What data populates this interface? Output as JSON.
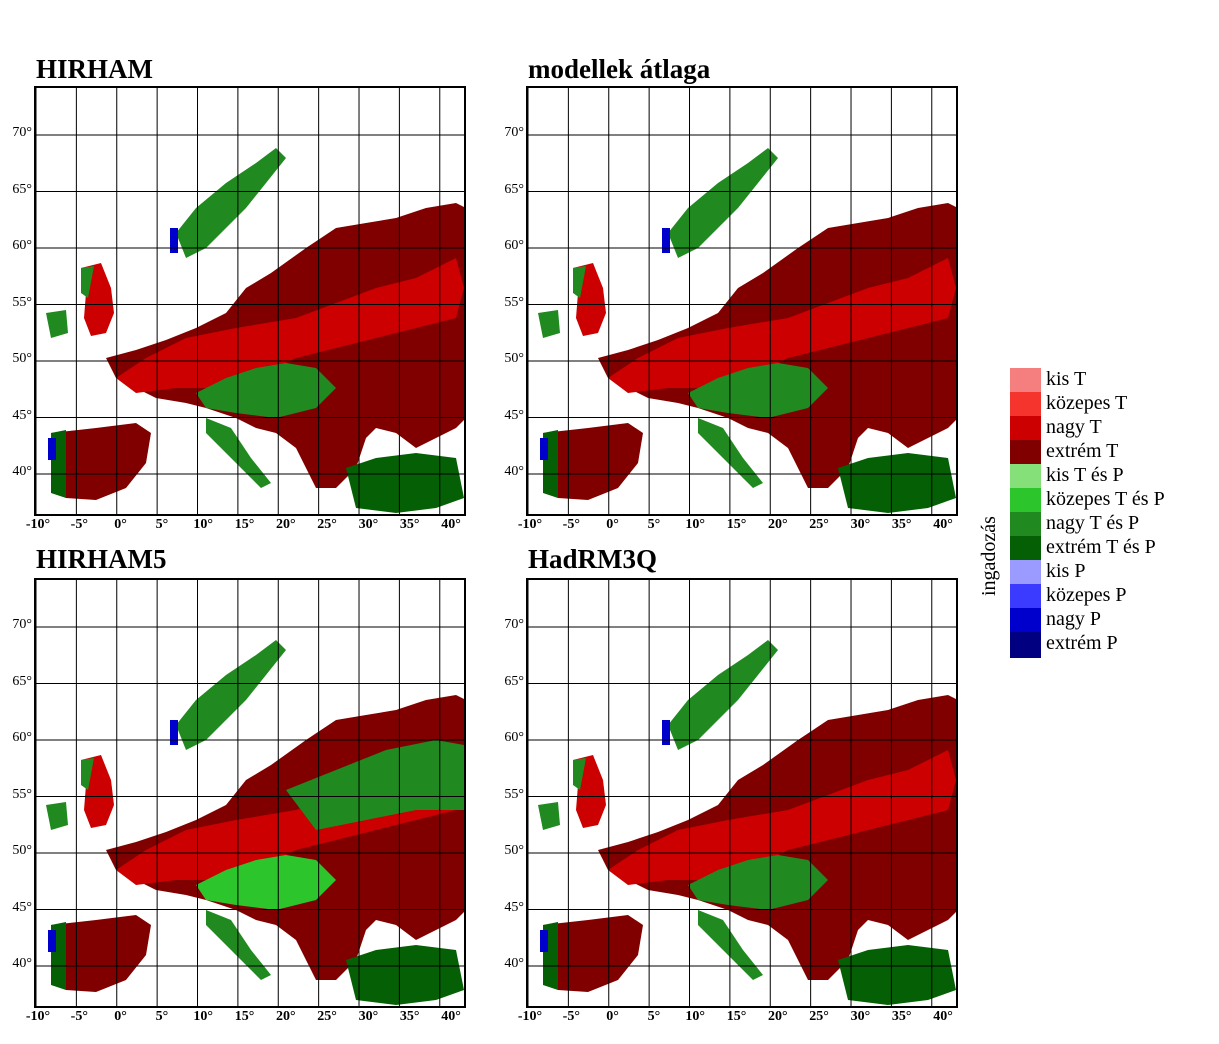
{
  "panels": [
    {
      "title": "HIRHAM"
    },
    {
      "title": "modellek átlaga"
    },
    {
      "title": "HIRHAM5"
    },
    {
      "title": "HadRM3Q"
    }
  ],
  "lat_ticks": [
    "70°",
    "65°",
    "60°",
    "55°",
    "50°",
    "45°",
    "40°"
  ],
  "lon_ticks": [
    "-10°",
    "-5°",
    "0°",
    "5°",
    "10°",
    "15°",
    "20°",
    "25°",
    "30°",
    "35°",
    "40°"
  ],
  "legend": {
    "title": "ingadozás",
    "items": [
      {
        "label": "kis T",
        "color": "#f57f7f"
      },
      {
        "label": "közepes T",
        "color": "#f5342e"
      },
      {
        "label": "nagy T",
        "color": "#cc0000"
      },
      {
        "label": "extrém T",
        "color": "#800000"
      },
      {
        "label": "kis T és P",
        "color": "#85e07a"
      },
      {
        "label": "közepes T és P",
        "color": "#2cc52c"
      },
      {
        "label": "nagy T és P",
        "color": "#208a20"
      },
      {
        "label": "extrém T és P",
        "color": "#056005"
      },
      {
        "label": "kis P",
        "color": "#9a9aff"
      },
      {
        "label": "közepes P",
        "color": "#3b3bff"
      },
      {
        "label": "nagy P",
        "color": "#0000cc"
      },
      {
        "label": "extrém P",
        "color": "#000080"
      }
    ]
  }
}
